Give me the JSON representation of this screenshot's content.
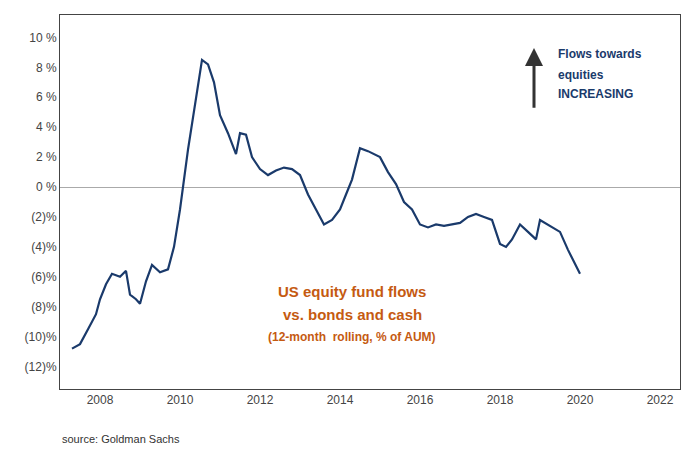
{
  "chart_data": {
    "type": "line",
    "title": "US equity fund flows",
    "subtitle": "vs. bonds and cash",
    "annotations": [
      "Flows towards",
      "equities",
      "INCREASING",
      "(12-month  rolling, % of AUM)",
      "source: Goldman Sachs"
    ],
    "x": [
      2007.3,
      2007.5,
      2007.7,
      2007.9,
      2008.0,
      2008.15,
      2008.3,
      2008.5,
      2008.65,
      2008.75,
      2008.9,
      2009.0,
      2009.15,
      2009.3,
      2009.5,
      2009.7,
      2009.85,
      2010.0,
      2010.2,
      2010.4,
      2010.55,
      2010.7,
      2010.85,
      2011.0,
      2011.2,
      2011.4,
      2011.5,
      2011.65,
      2011.8,
      2012.0,
      2012.2,
      2012.4,
      2012.6,
      2012.8,
      2013.0,
      2013.2,
      2013.4,
      2013.6,
      2013.8,
      2014.0,
      2014.15,
      2014.3,
      2014.5,
      2014.7,
      2015.0,
      2015.2,
      2015.4,
      2015.6,
      2015.8,
      2016.0,
      2016.2,
      2016.4,
      2016.6,
      2016.8,
      2017.0,
      2017.2,
      2017.4,
      2017.6,
      2017.8,
      2018.0,
      2018.15,
      2018.3,
      2018.5,
      2018.7,
      2018.9,
      2019.0,
      2019.2,
      2019.5,
      2019.7,
      2020.0
    ],
    "values": [
      -10.8,
      -10.5,
      -9.5,
      -8.5,
      -7.5,
      -6.5,
      -5.8,
      -6.0,
      -5.6,
      -7.2,
      -7.5,
      -7.8,
      -6.3,
      -5.2,
      -5.7,
      -5.5,
      -4.0,
      -1.5,
      2.5,
      6.0,
      8.5,
      8.2,
      7.0,
      4.8,
      3.6,
      2.2,
      3.6,
      3.5,
      2.0,
      1.2,
      0.8,
      1.1,
      1.3,
      1.2,
      0.8,
      -0.5,
      -1.5,
      -2.5,
      -2.2,
      -1.5,
      -0.5,
      0.5,
      2.6,
      2.4,
      2.0,
      1.0,
      0.2,
      -1.0,
      -1.5,
      -2.5,
      -2.7,
      -2.5,
      -2.6,
      -2.5,
      -2.4,
      -2.0,
      -1.8,
      -2.0,
      -2.2,
      -3.8,
      -4.0,
      -3.5,
      -2.5,
      -3.0,
      -3.5,
      -2.2,
      -2.5,
      -3.0,
      -4.2,
      -5.8
    ],
    "color": "#1a3a6b",
    "xlim": [
      2007.0,
      2022.5
    ],
    "xticks": [
      2008,
      2010,
      2012,
      2014,
      2016,
      2018,
      2020,
      2022
    ],
    "ylim": [
      -13.5,
      11.5
    ],
    "yticks": [
      {
        "value": 10,
        "label": "10 %"
      },
      {
        "value": 8,
        "label": "8 %"
      },
      {
        "value": 6,
        "label": "6 %"
      },
      {
        "value": 4,
        "label": "4 %"
      },
      {
        "value": 2,
        "label": "2 %"
      },
      {
        "value": 0,
        "label": "0 %"
      },
      {
        "value": -2,
        "label": "(2)%"
      },
      {
        "value": -4,
        "label": "(4)%"
      },
      {
        "value": -6,
        "label": "(6)%"
      },
      {
        "value": -8,
        "label": "(8)%"
      },
      {
        "value": -10,
        "label": "(10)%"
      },
      {
        "value": -12,
        "label": "(12)%"
      }
    ],
    "grid": false
  }
}
